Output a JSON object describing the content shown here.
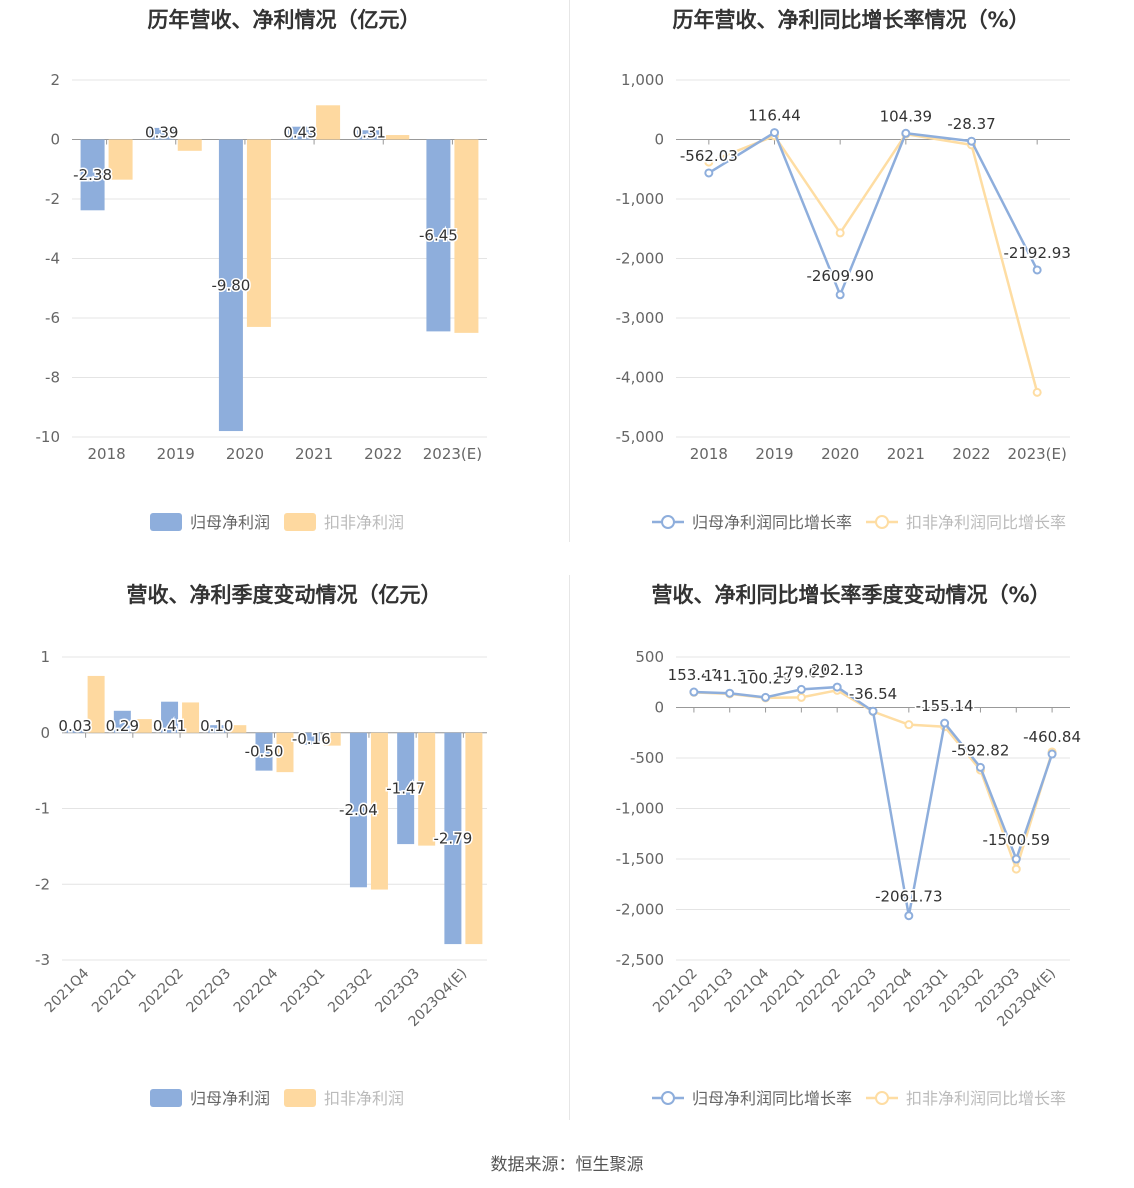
{
  "source_text": "数据来源：恒生聚源",
  "colors": {
    "series_a": "#8eaedc",
    "series_b": "#fed9a0",
    "series_a_line": "#8eaedc",
    "series_b_line": "#fedda3",
    "grid": "#e4e4e4",
    "axis": "#999999"
  },
  "chart_data": [
    {
      "id": "annual_profit",
      "type": "bar",
      "title": "历年营收、净利情况（亿元）",
      "categories": [
        "2018",
        "2019",
        "2020",
        "2021",
        "2022",
        "2023(E)"
      ],
      "ylim": [
        -10,
        2
      ],
      "yticks": [
        2,
        0,
        -2,
        -4,
        -6,
        -8,
        -10
      ],
      "ytick_labels": [
        "2",
        "0",
        "-2",
        "-4",
        "-6",
        "-8",
        "-10"
      ],
      "series": [
        {
          "name": "归母净利润",
          "values": [
            -2.38,
            0.39,
            -9.8,
            0.43,
            0.31,
            -6.45
          ],
          "labels": [
            "-2.38",
            "0.39",
            "-9.80",
            "0.43",
            "0.31",
            "-6.45"
          ]
        },
        {
          "name": "扣非净利润",
          "values": [
            -1.35,
            -0.38,
            -6.3,
            1.15,
            0.15,
            -6.5
          ]
        }
      ],
      "legend": "bottom"
    },
    {
      "id": "annual_growth",
      "type": "line",
      "title": "历年营收、净利同比增长率情况（%）",
      "categories": [
        "2018",
        "2019",
        "2020",
        "2021",
        "2022",
        "2023(E)"
      ],
      "ylim": [
        -5000,
        1000
      ],
      "yticks": [
        1000,
        0,
        -1000,
        -2000,
        -3000,
        -4000,
        -5000
      ],
      "ytick_labels": [
        "1,000",
        "0",
        "-1,000",
        "-2,000",
        "-3,000",
        "-4,000",
        "-5,000"
      ],
      "series": [
        {
          "name": "归母净利润同比增长率",
          "values": [
            -562.03,
            116.44,
            -2609.9,
            104.39,
            -28.37,
            -2192.93
          ],
          "labels": [
            "-562.03",
            "116.44",
            "-2609.90",
            "104.39",
            "-28.37",
            "-2192.93"
          ]
        },
        {
          "name": "扣非净利润同比增长率",
          "values": [
            -380,
            60,
            -1570,
            90,
            -90,
            -4250
          ]
        }
      ],
      "legend": "bottom"
    },
    {
      "id": "quarterly_profit",
      "type": "bar",
      "title": "营收、净利季度变动情况（亿元）",
      "categories": [
        "2021Q4",
        "2022Q1",
        "2022Q2",
        "2022Q3",
        "2022Q4",
        "2023Q1",
        "2023Q2",
        "2023Q3",
        "2023Q4(E)"
      ],
      "ylim": [
        -3,
        1
      ],
      "yticks": [
        1,
        0,
        -1,
        -2,
        -3
      ],
      "ytick_labels": [
        "1",
        "0",
        "-1",
        "-2",
        "-3"
      ],
      "series": [
        {
          "name": "归母净利润",
          "values": [
            0.03,
            0.29,
            0.41,
            0.1,
            -0.5,
            -0.16,
            -2.04,
            -1.47,
            -2.79
          ],
          "labels": [
            "0.03",
            "0.29",
            "0.41",
            "0.10",
            "-0.50",
            "-0.16",
            "-2.04",
            "-1.47",
            "-2.79"
          ]
        },
        {
          "name": "扣非净利润",
          "values": [
            0.75,
            0.18,
            0.4,
            0.1,
            -0.52,
            -0.17,
            -2.07,
            -1.49,
            -2.79
          ]
        }
      ],
      "legend": "bottom"
    },
    {
      "id": "quarterly_growth",
      "type": "line",
      "title": "营收、净利同比增长率季度变动情况（%）",
      "categories": [
        "2021Q2",
        "2021Q3",
        "2021Q4",
        "2022Q1",
        "2022Q2",
        "2022Q3",
        "2022Q4",
        "2023Q1",
        "2023Q2",
        "2023Q3",
        "2023Q4(E)"
      ],
      "ylim": [
        -2500,
        500
      ],
      "yticks": [
        500,
        0,
        -500,
        -1000,
        -1500,
        -2000,
        -2500
      ],
      "ytick_labels": [
        "500",
        "0",
        "-500",
        "-1,000",
        "-1,500",
        "-2,000",
        "-2,500"
      ],
      "series": [
        {
          "name": "归母净利润同比增长率",
          "values": [
            153.41,
            141.37,
            100.29,
            179.03,
            202.13,
            -36.54,
            -2061.73,
            -155.14,
            -592.82,
            -1500.59,
            -460.84
          ],
          "labels": [
            "153.41",
            "141.37",
            "100.29",
            "179.03",
            "202.13",
            "-36.54",
            "-2061.73",
            "-155.14",
            "-592.82",
            "-1500.59",
            "-460.84"
          ]
        },
        {
          "name": "扣非净利润同比增长率",
          "values": [
            150,
            135,
            95,
            100,
            170,
            -40,
            -170,
            -190,
            -620,
            -1600,
            -440
          ]
        }
      ],
      "legend": "bottom"
    }
  ]
}
